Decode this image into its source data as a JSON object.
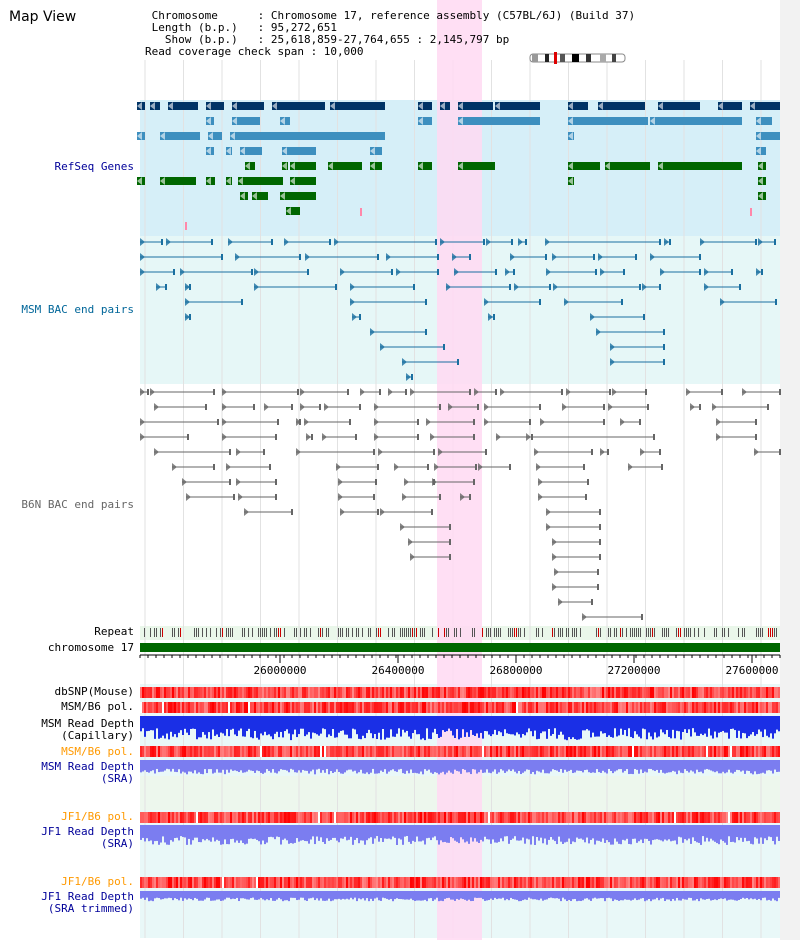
{
  "header": {
    "title": "Map View",
    "info_lines": [
      " Chromosome      : Chromosome 17, reference assembly (C57BL/6J) (Build 37)",
      " Length (b.p.)   : 95,272,651",
      "   Show (b.p.)   : 25,618,859-27,764,655 : 2,145,797 bp",
      "Read coverage check span : 10,000"
    ]
  },
  "tracks": {
    "refseq": {
      "label": "RefSeq Genes",
      "color": "#000099"
    },
    "msm_bac": {
      "label": "MSM BAC end pairs",
      "color": "#006699"
    },
    "b6n_bac": {
      "label": "B6N BAC end pairs",
      "color": "#666666"
    },
    "repeat": {
      "label": "Repeat"
    },
    "chromosome": {
      "label": "chromosome 17"
    },
    "dbsnp": {
      "label": "dbSNP(Mouse)"
    },
    "msm_b6_pol_1": {
      "label": "MSM/B6 pol."
    },
    "msm_depth_cap": {
      "label": "MSM Read Depth\n(Capillary)"
    },
    "msm_b6_pol_2": {
      "label": "MSM/B6 pol.",
      "color": "#ff9900"
    },
    "msm_depth_sra": {
      "label": "MSM Read Depth\n(SRA)",
      "color": "#000099"
    },
    "jf1_b6_pol_1": {
      "label": "JF1/B6 pol.",
      "color": "#ff9900"
    },
    "jf1_depth_sra": {
      "label": "JF1 Read Depth\n(SRA)",
      "color": "#000099"
    },
    "jf1_b6_pol_2": {
      "label": "JF1/B6 pol.",
      "color": "#ff9900"
    },
    "jf1_depth_trim": {
      "label": "JF1 Read Depth\n(SRA trimmed)",
      "color": "#000099"
    }
  },
  "axis": {
    "ticks": [
      "26000000",
      "26400000",
      "26800000",
      "27200000",
      "27600000"
    ]
  },
  "colors": {
    "highlight": "#ffd9f2",
    "refseq_bg": "#d6eff8",
    "msm_bg": "#e6f7f7",
    "gene_dark": "#003366",
    "gene_light": "#3d8fbf",
    "gene_green": "#006600",
    "depth_blue": "#1a2fe6",
    "depth_violet": "#7b7df0"
  }
}
